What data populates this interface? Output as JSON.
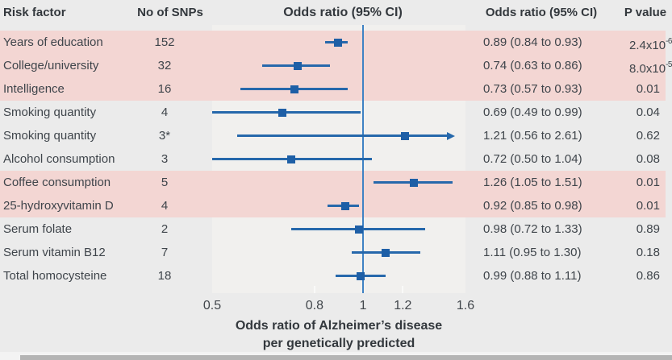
{
  "header": {
    "risk_factor": "Risk factor",
    "no_of_snps": "No of SNPs",
    "odds_ratio_plot": "Odds ratio (95% CI)",
    "odds_ratio_text": "Odds ratio (95% CI)",
    "p_value": "P value"
  },
  "colors": {
    "background": "#ebebeb",
    "panel_background": "#f1f0ee",
    "highlight_band": "#f3d6d3",
    "marker_blue": "#1e5fa6",
    "ci_line_blue": "#2668ab",
    "reference_line_blue": "#3f82c4",
    "text": "#3f454b",
    "scrollbar_gray": "#b4b4b4"
  },
  "chart_data": {
    "type": "forest",
    "x_scale": "log",
    "axis_min": 0.5,
    "axis_max": 1.6,
    "x_ticks": [
      0.5,
      0.8,
      1,
      1.2,
      1.6
    ],
    "x_tick_labels": [
      "0.5",
      "0.8",
      "1",
      "1.2",
      "1.6"
    ],
    "reference_line": 1,
    "bottom_ticks": [
      0.8,
      1.2
    ],
    "xlabel_line1": "Odds ratio of Alzheimer’s disease",
    "xlabel_line2": "per genetically predicted",
    "rows": [
      {
        "risk_factor": "Years of education",
        "snps": "152",
        "or": 0.89,
        "lo": 0.84,
        "hi": 0.93,
        "or_text": "0.89 (0.84 to 0.93)",
        "p_base": "2.4x10",
        "p_sup": "-6",
        "highlight": true,
        "arrow_right": false
      },
      {
        "risk_factor": "College/university",
        "snps": "32",
        "or": 0.74,
        "lo": 0.63,
        "hi": 0.86,
        "or_text": "0.74 (0.63 to 0.86)",
        "p_base": "8.0x10",
        "p_sup": "-5",
        "highlight": true,
        "arrow_right": false
      },
      {
        "risk_factor": "Intelligence",
        "snps": "16",
        "or": 0.73,
        "lo": 0.57,
        "hi": 0.93,
        "or_text": "0.73 (0.57 to 0.93)",
        "p_base": "0.01",
        "p_sup": "",
        "highlight": true,
        "arrow_right": false
      },
      {
        "risk_factor": "Smoking quantity",
        "snps": "4",
        "or": 0.69,
        "lo": 0.49,
        "hi": 0.99,
        "or_text": "0.69 (0.49 to 0.99)",
        "p_base": "0.04",
        "p_sup": "",
        "highlight": false,
        "arrow_right": false
      },
      {
        "risk_factor": "Smoking quantity",
        "snps": "3*",
        "or": 1.21,
        "lo": 0.56,
        "hi": 2.61,
        "or_text": "1.21 (0.56 to 2.61)",
        "p_base": "0.62",
        "p_sup": "",
        "highlight": false,
        "arrow_right": true
      },
      {
        "risk_factor": "Alcohol consumption",
        "snps": "3",
        "or": 0.72,
        "lo": 0.5,
        "hi": 1.04,
        "or_text": "0.72 (0.50 to 1.04)",
        "p_base": "0.08",
        "p_sup": "",
        "highlight": false,
        "arrow_right": false
      },
      {
        "risk_factor": "Coffee consumption",
        "snps": "5",
        "or": 1.26,
        "lo": 1.05,
        "hi": 1.51,
        "or_text": "1.26 (1.05 to 1.51)",
        "p_base": "0.01",
        "p_sup": "",
        "highlight": true,
        "arrow_right": false
      },
      {
        "risk_factor": "25-hydroxyvitamin D",
        "snps": "4",
        "or": 0.92,
        "lo": 0.85,
        "hi": 0.98,
        "or_text": "0.92 (0.85 to 0.98)",
        "p_base": "0.01",
        "p_sup": "",
        "highlight": true,
        "arrow_right": false
      },
      {
        "risk_factor": "Serum folate",
        "snps": "2",
        "or": 0.98,
        "lo": 0.72,
        "hi": 1.33,
        "or_text": "0.98 (0.72 to 1.33)",
        "p_base": "0.89",
        "p_sup": "",
        "highlight": false,
        "arrow_right": false
      },
      {
        "risk_factor": "Serum vitamin B12",
        "snps": "7",
        "or": 1.11,
        "lo": 0.95,
        "hi": 1.3,
        "or_text": "1.11 (0.95 to 1.30)",
        "p_base": "0.18",
        "p_sup": "",
        "highlight": false,
        "arrow_right": false
      },
      {
        "risk_factor": "Total homocysteine",
        "snps": "18",
        "or": 0.99,
        "lo": 0.88,
        "hi": 1.11,
        "or_text": "0.99 (0.88 to 1.11)",
        "p_base": "0.86",
        "p_sup": "",
        "highlight": false,
        "arrow_right": false
      }
    ]
  }
}
